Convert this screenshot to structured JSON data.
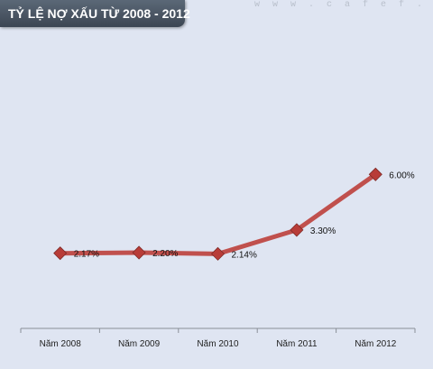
{
  "watermark": "w w w . c a f e f . v",
  "chart_data": {
    "type": "line",
    "title": "TỶ LỆ NỢ XẤU TỪ 2008 - 2012",
    "categories": [
      "Năm 2008",
      "Năm 2009",
      "Năm 2010",
      "Năm 2011",
      "Năm 2012"
    ],
    "series": [
      {
        "values": [
          2.17,
          2.2,
          2.14,
          3.3,
          6.0
        ],
        "labels": [
          "2.17%",
          "2.20%",
          "2.14%",
          "3.30%",
          "6.00%"
        ],
        "color": "#c0504d",
        "marker_color": "#b83c38"
      }
    ],
    "xlabel": "",
    "ylabel": "",
    "y_axis_visible": false,
    "grid": false,
    "legend": "none"
  }
}
